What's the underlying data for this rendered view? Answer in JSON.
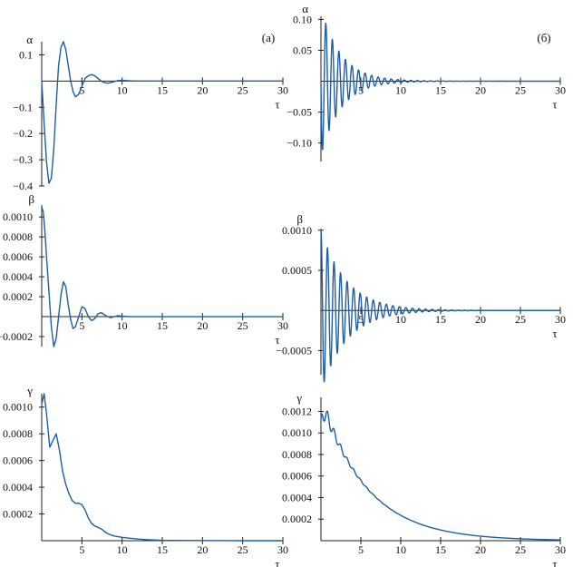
{
  "curve_color": "#1f5fa6",
  "chart_data": [
    {
      "type": "line",
      "panel_tag": "(а)",
      "ylabel": "α",
      "xlabel": "τ",
      "xlim": [
        0,
        30
      ],
      "ylim": [
        -0.4,
        0.15
      ],
      "xticks": [
        5,
        10,
        15,
        20,
        25,
        30
      ],
      "xtick_labels": [
        "5",
        "10",
        "15",
        "20",
        "25",
        "30"
      ],
      "yticks": [
        0.1,
        -0.1,
        -0.2,
        -0.3,
        -0.4
      ],
      "ytick_labels": [
        "0.1",
        "−0.1",
        "−0.2",
        "−0.3",
        "−0.4"
      ],
      "x_axis_at": 0,
      "series": [
        {
          "x": [
            0,
            0.3,
            0.6,
            0.9,
            1.2,
            1.5,
            1.8,
            2.1,
            2.4,
            2.7,
            3.0,
            3.3,
            3.6,
            3.9,
            4.2,
            4.6,
            5.0,
            5.4,
            5.8,
            6.2,
            6.6,
            7.0,
            7.4,
            7.8,
            8.2,
            8.6,
            9.0,
            9.5,
            10,
            10.5,
            11,
            12,
            13,
            15,
            20,
            25,
            30
          ],
          "y": [
            0,
            -0.16,
            -0.31,
            -0.39,
            -0.37,
            -0.26,
            -0.09,
            0.06,
            0.13,
            0.15,
            0.12,
            0.06,
            0.0,
            -0.04,
            -0.06,
            -0.05,
            -0.02,
            0.01,
            0.02,
            0.025,
            0.02,
            0.01,
            0.0,
            -0.006,
            -0.008,
            -0.006,
            -0.002,
            0.002,
            0.003,
            0.002,
            0.001,
            0.0,
            0.0,
            0,
            0,
            0,
            0
          ]
        }
      ]
    },
    {
      "type": "line",
      "panel_tag": "(б)",
      "ylabel": "α",
      "xlabel": "τ",
      "xlim": [
        0,
        30
      ],
      "ylim": [
        -0.13,
        0.105
      ],
      "xticks": [
        5,
        10,
        15,
        20,
        25,
        30
      ],
      "xtick_labels": [
        "5",
        "10",
        "15",
        "20",
        "25",
        "30"
      ],
      "yticks": [
        0.1,
        0.05,
        -0.05,
        -0.1
      ],
      "ytick_labels": [
        "0.10",
        "0.05",
        "−0.05",
        "−0.10"
      ],
      "x_axis_at": 0,
      "series": [
        {
          "decay_osc": {
            "A": 0.12,
            "tau": 2.5,
            "period": 0.82,
            "phase": 1.6,
            "start": 0.0
          }
        }
      ]
    },
    {
      "type": "line",
      "panel_tag": "",
      "ylabel": "β",
      "xlabel": "τ",
      "xlim": [
        0,
        30
      ],
      "ylim": [
        -0.0003,
        0.00112
      ],
      "xticks": [
        5,
        10,
        15,
        20,
        25,
        30
      ],
      "xtick_labels": [
        "5",
        "10",
        "15",
        "20",
        "25",
        "30"
      ],
      "yticks": [
        0.001,
        0.0008,
        0.0006,
        0.0004,
        0.0002,
        -0.0002
      ],
      "ytick_labels": [
        "0.0010",
        "0.0008",
        "0.0006",
        "0.0004",
        "0.0002",
        "−0.0002"
      ],
      "x_axis_at": 0,
      "series": [
        {
          "x": [
            0,
            0.2,
            0.4,
            0.6,
            0.9,
            1.2,
            1.5,
            1.8,
            2.1,
            2.4,
            2.7,
            3.0,
            3.3,
            3.6,
            3.9,
            4.2,
            4.6,
            5.0,
            5.4,
            5.8,
            6.2,
            6.6,
            7.0,
            7.4,
            7.8,
            8.2,
            8.6,
            9.0,
            9.5,
            10,
            11,
            12,
            15,
            20,
            25,
            30
          ],
          "y": [
            0.0011,
            0.00105,
            0.00085,
            0.0006,
            0.00025,
            -0.0001,
            -0.0003,
            -0.00022,
            0.0,
            0.00022,
            0.00035,
            0.0003,
            0.00012,
            -3e-05,
            -0.00012,
            -0.0001,
            0.0,
            0.0001,
            8e-05,
            0.0,
            -4e-05,
            -2e-05,
            3e-05,
            4e-05,
            2e-05,
            0.0,
            -1e-05,
            0.0,
            1e-05,
            5e-06,
            0.0,
            0.0,
            0,
            0,
            0,
            0
          ]
        }
      ]
    },
    {
      "type": "line",
      "panel_tag": "",
      "ylabel": "β",
      "xlabel": "τ",
      "xlim": [
        0,
        30
      ],
      "ylim": [
        -0.0008,
        0.00102
      ],
      "xticks": [
        5,
        10,
        15,
        20,
        25,
        30
      ],
      "xtick_labels": [
        "5",
        "10",
        "15",
        "20",
        "25",
        "30"
      ],
      "yticks": [
        0.001,
        0.0005,
        -0.0005
      ],
      "ytick_labels": [
        "0.0010",
        "0.0005",
        "−0.0005"
      ],
      "x_axis_at": 0,
      "series": [
        {
          "decay_osc": {
            "A": 0.00101,
            "tau": 3.2,
            "period": 0.82,
            "phase": 0.0,
            "start": 0.0
          }
        }
      ]
    },
    {
      "type": "line",
      "panel_tag": "",
      "ylabel": "γ",
      "xlabel": "τ",
      "xlim": [
        0,
        30
      ],
      "ylim": [
        0,
        0.0011
      ],
      "xticks": [
        5,
        10,
        15,
        20,
        25,
        30
      ],
      "xtick_labels": [
        "5",
        "10",
        "15",
        "20",
        "25",
        "30"
      ],
      "yticks": [
        0.001,
        0.0008,
        0.0006,
        0.0004,
        0.0002
      ],
      "ytick_labels": [
        "0.0010",
        "0.0008",
        "0.0006",
        "0.0004",
        "0.0002"
      ],
      "x_axis_at": 0,
      "series": [
        {
          "x": [
            0,
            0.3,
            0.6,
            1.0,
            1.4,
            1.8,
            2.2,
            2.6,
            3.0,
            3.4,
            3.8,
            4.2,
            4.6,
            5.0,
            5.4,
            5.8,
            6.2,
            6.6,
            7.0,
            7.5,
            8.0,
            8.5,
            9.0,
            9.5,
            10,
            11,
            12,
            13,
            14,
            15,
            17,
            20,
            25,
            30
          ],
          "y": [
            0.00102,
            0.0011,
            0.00095,
            0.0007,
            0.00075,
            0.0008,
            0.00068,
            0.00052,
            0.00042,
            0.00035,
            0.0003,
            0.00028,
            0.00028,
            0.00027,
            0.00023,
            0.00017,
            0.00013,
            0.00011,
            0.0001,
            8.5e-05,
            6e-05,
            4.5e-05,
            3.5e-05,
            3e-05,
            2.5e-05,
            1.8e-05,
            1.2e-05,
            8e-06,
            5e-06,
            3e-06,
            2e-06,
            1e-06,
            0,
            0
          ]
        }
      ]
    },
    {
      "type": "line",
      "panel_tag": "",
      "ylabel": "γ",
      "xlabel": "τ",
      "xlim": [
        0,
        30
      ],
      "ylim": [
        0,
        0.00133
      ],
      "xticks": [
        5,
        10,
        15,
        20,
        25,
        30
      ],
      "xtick_labels": [
        "5",
        "10",
        "15",
        "20",
        "25",
        "30"
      ],
      "yticks": [
        0.0012,
        0.001,
        0.0008,
        0.0006,
        0.0004,
        0.0002
      ],
      "ytick_labels": [
        "0.0012",
        "0.0010",
        "0.0008",
        "0.0006",
        "0.0004",
        "0.0002"
      ],
      "x_axis_at": 0,
      "series": [
        {
          "decay_ripple": {
            "A": 0.00132,
            "tau": 5.8,
            "ripple": 0.07,
            "period": 0.82,
            "rtau": 3.0,
            "y0": 0.00105,
            "rise": 0.25
          }
        }
      ]
    }
  ]
}
